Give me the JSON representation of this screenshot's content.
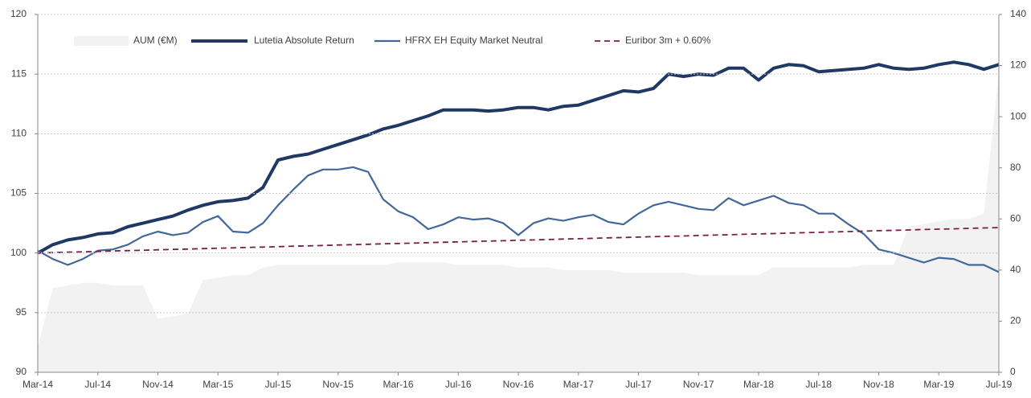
{
  "chart_data": {
    "type": "line",
    "categories": [
      "Mar-14",
      null,
      null,
      null,
      "Jul-14",
      null,
      null,
      null,
      "Nov-14",
      null,
      null,
      null,
      "Mar-15",
      null,
      null,
      null,
      "Jul-15",
      null,
      null,
      null,
      "Nov-15",
      null,
      null,
      null,
      "Mar-16",
      null,
      null,
      null,
      "Jul-16",
      null,
      null,
      null,
      "Nov-16",
      null,
      null,
      null,
      "Mar-17",
      null,
      null,
      null,
      "Jul-17",
      null,
      null,
      null,
      "Nov-17",
      null,
      null,
      null,
      "Mar-18",
      null,
      null,
      null,
      "Jul-18",
      null,
      null,
      null,
      "Nov-18",
      null,
      null,
      null,
      "Mar-19",
      null,
      null,
      null,
      "Jul-19"
    ],
    "series": [
      {
        "name": "AUM (€M)",
        "color": "#f2f2f2",
        "style": "area",
        "axis": "y2",
        "values": [
          10,
          33,
          34,
          35,
          35,
          34,
          34,
          34,
          21,
          22,
          23,
          36,
          37,
          38,
          38,
          41,
          42,
          42,
          42,
          42,
          42,
          42,
          42,
          42,
          43,
          43,
          43,
          43,
          42,
          42,
          42,
          42,
          41,
          41,
          41,
          40,
          40,
          40,
          40,
          39,
          39,
          39,
          39,
          39,
          38,
          38,
          38,
          38,
          38,
          41,
          41,
          41,
          41,
          41,
          41,
          42,
          42,
          42,
          57,
          58,
          59,
          60,
          60,
          62,
          117
        ]
      },
      {
        "name": "Lutetia Absolute Return",
        "color": "#1f3864",
        "style": "line",
        "width": 4,
        "values": [
          100,
          100.7,
          101.1,
          101.3,
          101.6,
          101.7,
          102.2,
          102.5,
          102.8,
          103.1,
          103.6,
          104.0,
          104.3,
          104.4,
          104.6,
          105.5,
          107.8,
          108.1,
          108.3,
          108.7,
          109.1,
          109.5,
          109.9,
          110.4,
          110.7,
          111.1,
          111.5,
          112.0,
          112.0,
          112.0,
          111.9,
          112.0,
          112.2,
          112.2,
          112.0,
          112.3,
          112.4,
          112.8,
          113.2,
          113.6,
          113.5,
          113.8,
          115.0,
          114.8,
          115.0,
          114.9,
          115.5,
          115.5,
          114.5,
          115.5,
          115.8,
          115.7,
          115.2,
          115.3,
          115.4,
          115.5,
          115.8,
          115.5,
          115.4,
          115.5,
          115.8,
          116.0,
          115.8,
          115.4,
          115.8
        ]
      },
      {
        "name": "HFRX EH Equity Market Neutral",
        "color": "#44679a",
        "style": "line",
        "width": 2.2,
        "values": [
          100.2,
          99.5,
          99.0,
          99.5,
          100.2,
          100.3,
          100.7,
          101.4,
          101.8,
          101.5,
          101.7,
          102.6,
          103.1,
          101.8,
          101.7,
          102.5,
          104.0,
          105.3,
          106.5,
          107.0,
          107.0,
          107.2,
          106.8,
          104.5,
          103.5,
          103.0,
          102.0,
          102.4,
          103.0,
          102.8,
          102.9,
          102.5,
          101.5,
          102.5,
          102.9,
          102.7,
          103.0,
          103.2,
          102.6,
          102.4,
          103.3,
          104.0,
          104.3,
          104.0,
          103.7,
          103.6,
          104.6,
          104.0,
          104.4,
          104.8,
          104.2,
          104.0,
          103.3,
          103.3,
          102.4,
          101.6,
          100.3,
          100.0,
          99.6,
          99.2,
          99.6,
          99.5,
          99.0,
          99.0,
          98.4
        ]
      },
      {
        "name": "Euribor 3m + 0.60%",
        "color": "#7b1c4a",
        "style": "dashed",
        "width": 1.8,
        "values": [
          100,
          100.03,
          100.07,
          100.1,
          100.13,
          100.17,
          100.2,
          100.23,
          100.27,
          100.3,
          100.33,
          100.37,
          100.4,
          100.43,
          100.47,
          100.5,
          100.53,
          100.57,
          100.6,
          100.63,
          100.67,
          100.7,
          100.73,
          100.77,
          100.8,
          100.83,
          100.87,
          100.9,
          100.93,
          100.97,
          101.0,
          101.03,
          101.07,
          101.1,
          101.13,
          101.17,
          101.2,
          101.23,
          101.27,
          101.3,
          101.33,
          101.37,
          101.4,
          101.43,
          101.47,
          101.5,
          101.53,
          101.57,
          101.6,
          101.63,
          101.67,
          101.7,
          101.73,
          101.77,
          101.8,
          101.83,
          101.87,
          101.9,
          101.93,
          101.97,
          102.0,
          102.03,
          102.07,
          102.1,
          102.13
        ]
      }
    ],
    "ylim": [
      90,
      120
    ],
    "yticks": [
      90,
      95,
      100,
      105,
      110,
      115,
      120
    ],
    "y2lim": [
      0,
      140
    ],
    "y2ticks": [
      0,
      20,
      40,
      60,
      80,
      100,
      120,
      140
    ],
    "grid": true,
    "legend": "top"
  }
}
